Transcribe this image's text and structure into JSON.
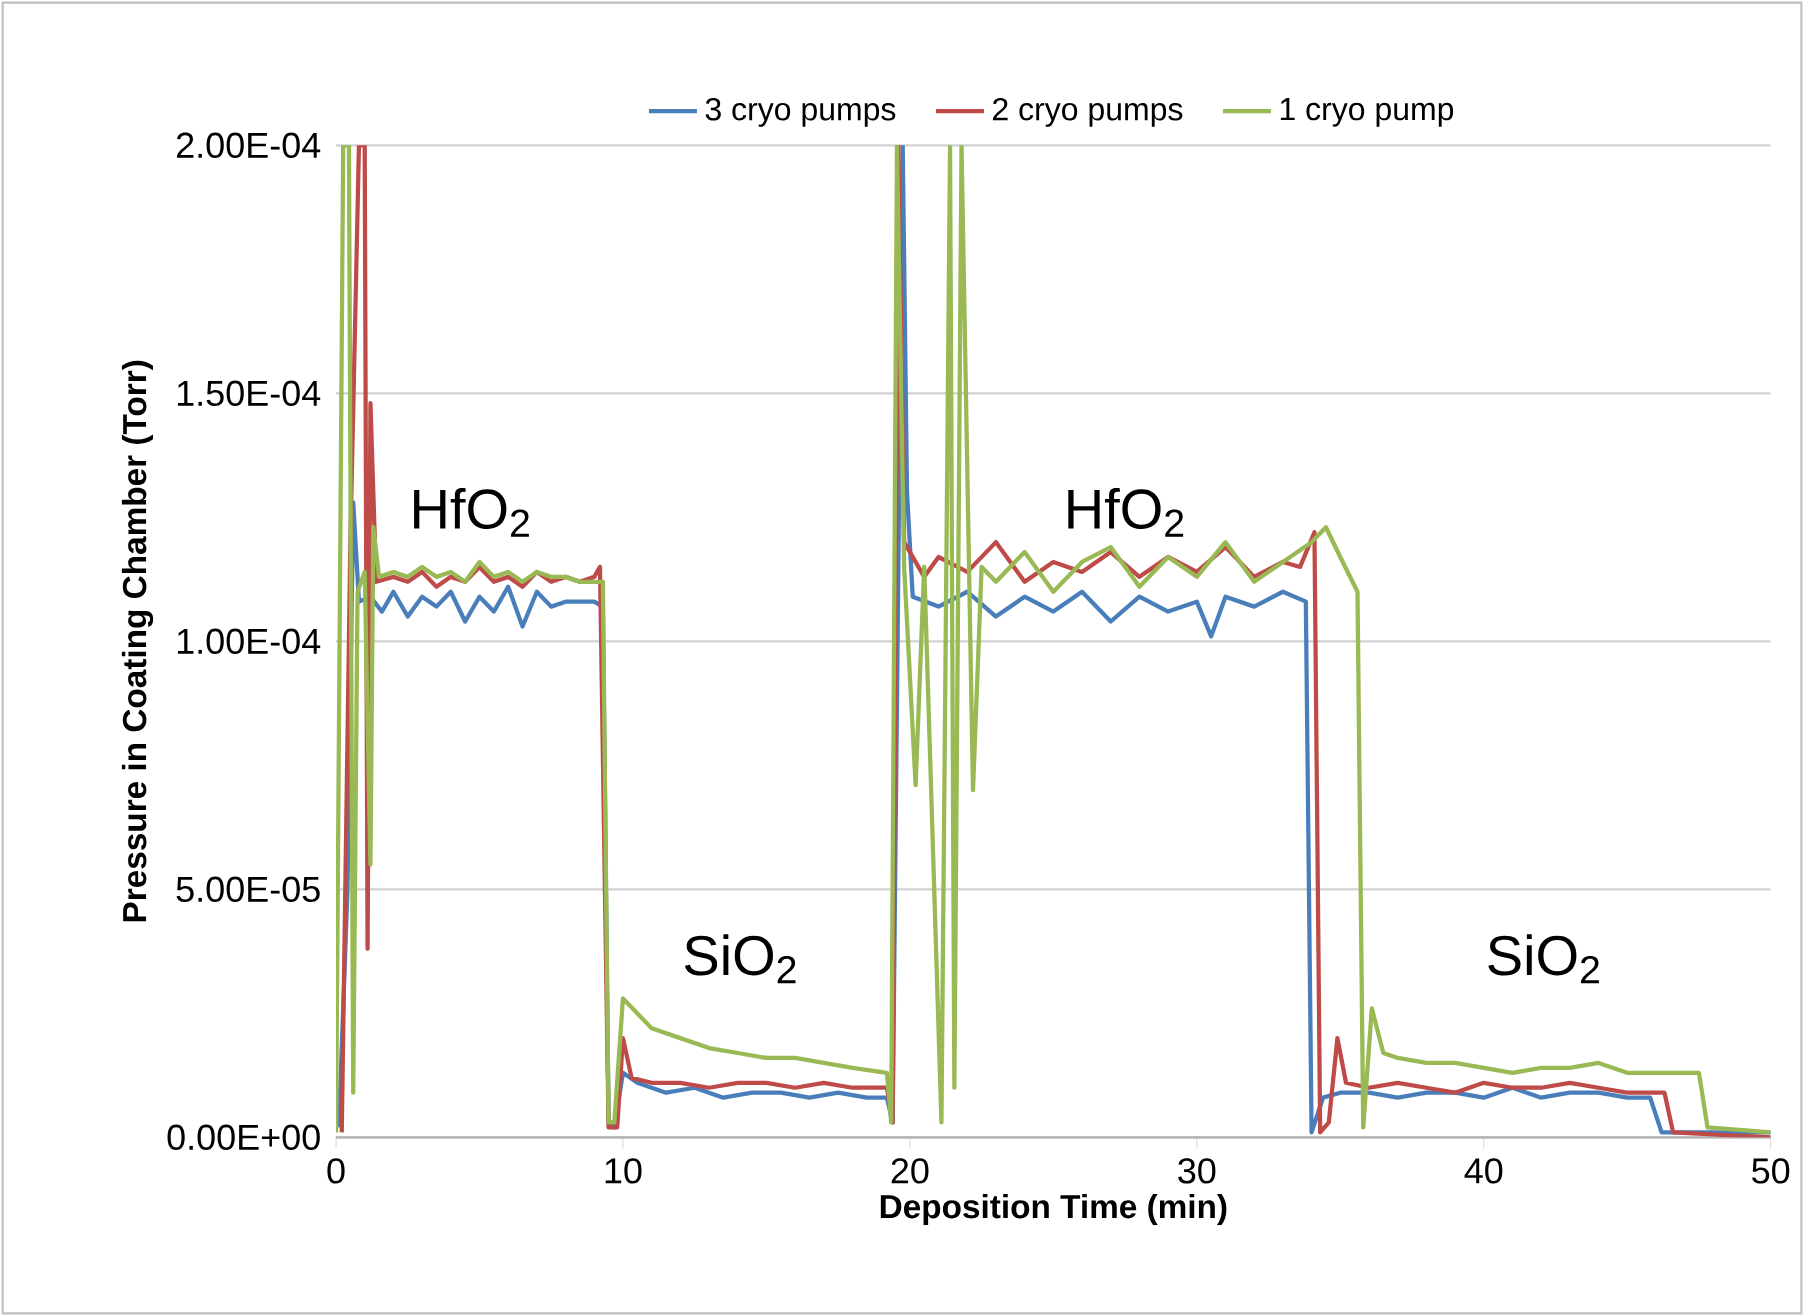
{
  "chart_data": {
    "type": "line",
    "xlabel": "Deposition Time (min)",
    "ylabel": "Pressure in Coating Chamber (Torr)",
    "xlim": [
      0,
      50
    ],
    "xticks": [
      0,
      10,
      20,
      30,
      40,
      50
    ],
    "ylim": [
      0,
      0.0002
    ],
    "yticks": [
      {
        "value": 0,
        "label": "0.00E+00"
      },
      {
        "value": 5e-05,
        "label": "5.00E-05"
      },
      {
        "value": 0.0001,
        "label": "1.00E-04"
      },
      {
        "value": 0.00015,
        "label": "1.50E-04"
      },
      {
        "value": 0.0002,
        "label": "2.00E-04"
      }
    ],
    "grid": "y",
    "legend": "top",
    "marker": "none",
    "line_style": "solid",
    "annotations": [
      "HfO$_{2}$",
      "SiO$_{2}$",
      "HfO$_{2}$",
      "SiO$_{2}$"
    ],
    "series": [
      {
        "name": "3 cryo pumps",
        "color": "#4a7ebb",
        "x": [
          0.1,
          0.4,
          0.6,
          0.8,
          1.2,
          1.6,
          2.0,
          2.5,
          3.0,
          3.5,
          4.0,
          4.5,
          5.0,
          5.5,
          6.0,
          6.5,
          7.0,
          7.5,
          8.0,
          8.5,
          9.0,
          9.3,
          9.5,
          9.7,
          10.0,
          10.5,
          11.5,
          12.5,
          13.5,
          14.5,
          15.5,
          16.5,
          17.5,
          18.5,
          19.2,
          19.4,
          19.75,
          19.9,
          20.1,
          21.0,
          22.0,
          23.0,
          24.0,
          25.0,
          26.0,
          27.0,
          28.0,
          29.0,
          30.0,
          30.5,
          31.0,
          32.0,
          33.0,
          33.8,
          34.0,
          34.4,
          35.0,
          36.0,
          37.0,
          38.0,
          39.0,
          40.0,
          41.0,
          42.0,
          43.0,
          44.0,
          45.0,
          45.8,
          46.2,
          48.0,
          50.0
        ],
        "values": [
          2e-06,
          5e-05,
          0.000128,
          0.000108,
          0.000109,
          0.000106,
          0.00011,
          0.000105,
          0.000109,
          0.000107,
          0.00011,
          0.000104,
          0.000109,
          0.000106,
          0.000111,
          0.000103,
          0.00011,
          0.000107,
          0.000108,
          0.000108,
          0.000108,
          0.000107,
          3e-06,
          2e-06,
          1.3e-05,
          1.1e-05,
          9e-06,
          1e-05,
          8e-06,
          9e-06,
          9e-06,
          8e-06,
          9e-06,
          8e-06,
          8e-06,
          3e-06,
          0.0002,
          0.00013,
          0.000109,
          0.000107,
          0.00011,
          0.000105,
          0.000109,
          0.000106,
          0.00011,
          0.000104,
          0.000109,
          0.000106,
          0.000108,
          0.000101,
          0.000109,
          0.000107,
          0.00011,
          0.000108,
          1e-06,
          8e-06,
          9e-06,
          9e-06,
          8e-06,
          9e-06,
          9e-06,
          8e-06,
          1e-05,
          8e-06,
          9e-06,
          9e-06,
          8e-06,
          8e-06,
          1e-06,
          1e-06,
          1e-06
        ]
      },
      {
        "name": "2 cryo pumps",
        "color": "#be4b48",
        "x": [
          0.2,
          0.5,
          0.8,
          1.0,
          1.1,
          1.2,
          1.4,
          2.0,
          2.5,
          3.0,
          3.5,
          4.0,
          4.5,
          5.0,
          5.5,
          6.0,
          6.5,
          7.0,
          7.5,
          8.0,
          8.5,
          9.0,
          9.2,
          9.5,
          9.8,
          10.0,
          10.3,
          11.0,
          12.0,
          13.0,
          14.0,
          15.0,
          16.0,
          17.0,
          18.0,
          19.2,
          19.4,
          19.6,
          19.8,
          20.5,
          21.0,
          22.0,
          23.0,
          24.0,
          25.0,
          26.0,
          27.0,
          28.0,
          29.0,
          30.0,
          31.0,
          32.0,
          33.0,
          33.6,
          34.1,
          34.3,
          34.6,
          34.9,
          35.2,
          36.0,
          37.0,
          38.0,
          39.0,
          40.0,
          41.0,
          42.0,
          43.0,
          44.0,
          45.0,
          46.3,
          46.6,
          50.0
        ],
        "values": [
          1e-06,
          0.00012,
          0.0002,
          0.0002,
          3.8e-05,
          0.000148,
          0.000112,
          0.000113,
          0.000112,
          0.000114,
          0.000111,
          0.000113,
          0.000112,
          0.000115,
          0.000112,
          0.000113,
          0.000111,
          0.000114,
          0.000112,
          0.000113,
          0.000112,
          0.000113,
          0.000115,
          2e-06,
          2e-06,
          2e-05,
          1.2e-05,
          1.1e-05,
          1.1e-05,
          1e-05,
          1.1e-05,
          1.1e-05,
          1e-05,
          1.1e-05,
          1e-05,
          1e-05,
          3e-06,
          0.0002,
          0.00012,
          0.000113,
          0.000117,
          0.000114,
          0.00012,
          0.000112,
          0.000116,
          0.000114,
          0.000118,
          0.000113,
          0.000117,
          0.000114,
          0.000119,
          0.000113,
          0.000116,
          0.000115,
          0.000122,
          1e-06,
          3e-06,
          2e-05,
          1.1e-05,
          1e-05,
          1.1e-05,
          1e-05,
          9e-06,
          1.1e-05,
          1e-05,
          1e-05,
          1.1e-05,
          1e-05,
          9e-06,
          9e-06,
          1e-06,
          0
        ]
      },
      {
        "name": "1 cryo pump",
        "color": "#98b954",
        "x": [
          0.0,
          0.25,
          0.45,
          0.6,
          0.75,
          1.0,
          1.2,
          1.3,
          1.5,
          2.0,
          2.5,
          3.0,
          3.5,
          4.0,
          4.5,
          5.0,
          5.5,
          6.0,
          6.5,
          7.0,
          7.5,
          8.0,
          8.5,
          9.0,
          9.3,
          9.5,
          9.7,
          10.0,
          11.0,
          12.0,
          13.0,
          14.0,
          15.0,
          16.0,
          17.0,
          18.0,
          19.2,
          19.35,
          19.55,
          19.8,
          20.2,
          20.5,
          21.1,
          21.4,
          21.55,
          21.8,
          22.2,
          22.5,
          23.0,
          24.0,
          25.0,
          26.0,
          27.0,
          28.0,
          29.0,
          30.0,
          31.0,
          32.0,
          33.0,
          34.0,
          34.5,
          35.0,
          35.6,
          35.8,
          36.1,
          36.5,
          37.0,
          38.0,
          39.0,
          40.0,
          41.0,
          42.0,
          43.0,
          44.0,
          45.0,
          46.0,
          47.0,
          47.5,
          47.8,
          50.0
        ],
        "values": [
          1e-06,
          0.0002,
          0.0002,
          9e-06,
          0.00011,
          0.000114,
          5.5e-05,
          0.000123,
          0.000113,
          0.000114,
          0.000113,
          0.000115,
          0.000113,
          0.000114,
          0.000112,
          0.000116,
          0.000113,
          0.000114,
          0.000112,
          0.000114,
          0.000113,
          0.000113,
          0.000112,
          0.000112,
          0.000112,
          3e-06,
          3e-06,
          2.8e-05,
          2.2e-05,
          2e-05,
          1.8e-05,
          1.7e-05,
          1.6e-05,
          1.6e-05,
          1.5e-05,
          1.4e-05,
          1.3e-05,
          3e-06,
          0.0002,
          0.000115,
          7.1e-05,
          0.000115,
          3e-06,
          0.0002,
          1e-05,
          0.0002,
          7e-05,
          0.000115,
          0.000112,
          0.000118,
          0.00011,
          0.000116,
          0.000119,
          0.000111,
          0.000117,
          0.000113,
          0.00012,
          0.000112,
          0.000116,
          0.00012,
          0.000123,
          0.000117,
          0.00011,
          2e-06,
          2.6e-05,
          1.7e-05,
          1.6e-05,
          1.5e-05,
          1.5e-05,
          1.4e-05,
          1.3e-05,
          1.4e-05,
          1.4e-05,
          1.5e-05,
          1.3e-05,
          1.3e-05,
          1.3e-05,
          1.3e-05,
          2e-06,
          1e-06
        ]
      }
    ]
  }
}
